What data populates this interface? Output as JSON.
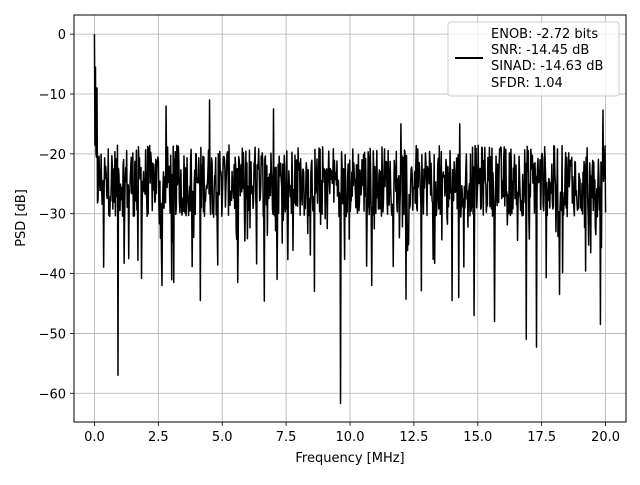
{
  "chart_data": {
    "type": "line",
    "title": "",
    "xlabel": "Frequency [MHz]",
    "ylabel": "PSD [dB]",
    "xlim": [
      -0.8,
      20.8
    ],
    "ylim": [
      -64.8,
      3.2
    ],
    "grid": true,
    "legend_position": "top-right",
    "xticks": [
      0.0,
      2.5,
      5.0,
      7.5,
      10.0,
      12.5,
      15.0,
      17.5,
      20.0
    ],
    "xtick_labels": [
      "0.0",
      "2.5",
      "5.0",
      "7.5",
      "10.0",
      "12.5",
      "15.0",
      "17.5",
      "20.0"
    ],
    "yticks": [
      0,
      -10,
      -20,
      -30,
      -40,
      -50,
      -60
    ],
    "ytick_labels": [
      "0",
      "−10",
      "−20",
      "−30",
      "−40",
      "−50",
      "−60"
    ],
    "legend": {
      "lines": [
        "ENOB: -2.72 bits",
        "SNR: -14.45 dB",
        "SINAD: -14.63 dB",
        "SFDR: 1.04"
      ]
    },
    "series": [
      {
        "color": "#000000",
        "x_start": 0.0,
        "x_end": 20.0,
        "num_points": 1000,
        "base_level_db": -24.5,
        "noise_spread_db": 12,
        "dips": [
          {
            "x": 0.92,
            "y": -57.0
          },
          {
            "x": 9.62,
            "y": -61.7
          },
          {
            "x": 17.3,
            "y": -52.3
          },
          {
            "x": 1.35,
            "y": -37.5
          },
          {
            "x": 1.85,
            "y": -40.8
          },
          {
            "x": 2.65,
            "y": -42.0
          },
          {
            "x": 3.1,
            "y": -41.5
          },
          {
            "x": 4.15,
            "y": -44.5
          },
          {
            "x": 5.6,
            "y": -41.5
          },
          {
            "x": 6.65,
            "y": -44.6
          },
          {
            "x": 7.15,
            "y": -41.0
          },
          {
            "x": 8.6,
            "y": -43.0
          },
          {
            "x": 10.85,
            "y": -42.0
          },
          {
            "x": 12.2,
            "y": -44.3
          },
          {
            "x": 14.25,
            "y": -44.0
          },
          {
            "x": 14.85,
            "y": -47.0
          },
          {
            "x": 15.65,
            "y": -48.0
          },
          {
            "x": 16.9,
            "y": -51.0
          },
          {
            "x": 18.2,
            "y": -43.5
          },
          {
            "x": 19.8,
            "y": -48.5
          }
        ],
        "peaks": [
          {
            "x": 0.0,
            "y": 0.0
          },
          {
            "x": 0.05,
            "y": -5.5
          },
          {
            "x": 0.1,
            "y": -9.0
          },
          {
            "x": 2.8,
            "y": -12.0
          },
          {
            "x": 4.5,
            "y": -11.0
          },
          {
            "x": 7.0,
            "y": -12.5
          },
          {
            "x": 12.0,
            "y": -15.0
          },
          {
            "x": 14.3,
            "y": -15.0
          },
          {
            "x": 19.9,
            "y": -12.7
          }
        ]
      }
    ]
  }
}
